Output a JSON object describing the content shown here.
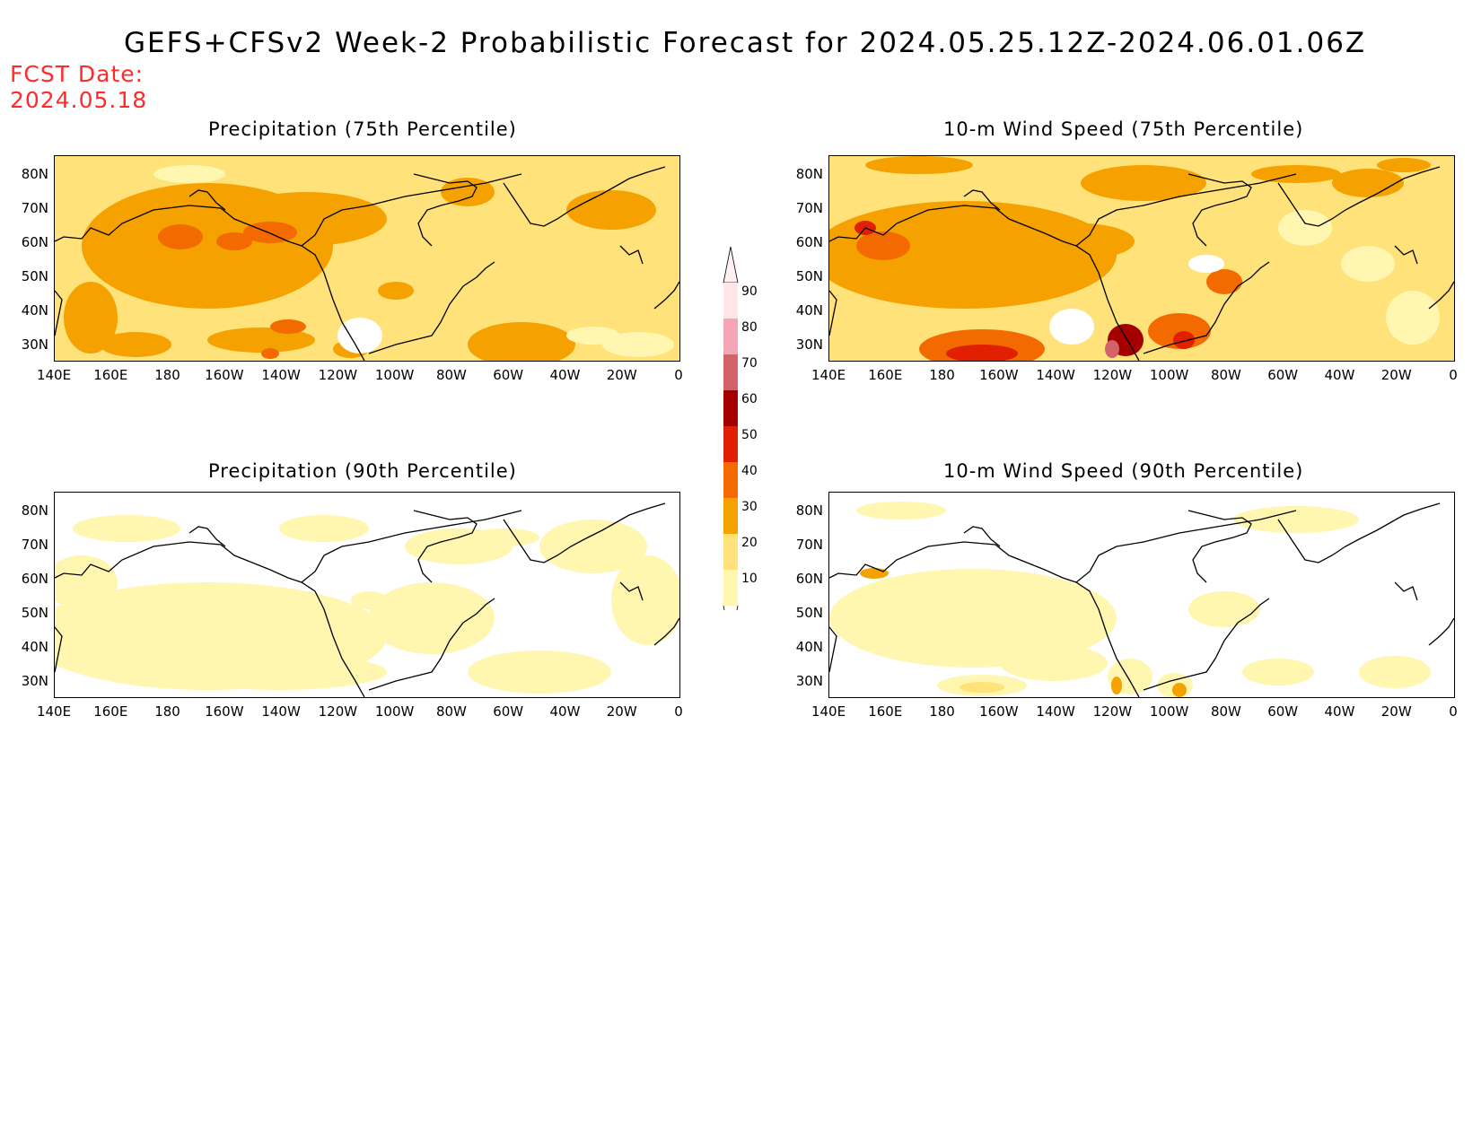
{
  "title": "GEFS+CFSv2 Week-2 Probabilistic Forecast for 2024.05.25.12Z-2024.06.01.06Z",
  "fcst_date_label": "FCST Date:",
  "fcst_date_value": "2024.05.18",
  "colors": {
    "fcst_text": "#ff2a2a",
    "levels": [
      "#ffffff",
      "#fff6b0",
      "#ffe27a",
      "#f5a200",
      "#f26a00",
      "#e02000",
      "#a50000",
      "#d4626a",
      "#f4a6b4",
      "#ffe4e8"
    ]
  },
  "colorbar": {
    "labels": [
      "90",
      "80",
      "70",
      "60",
      "50",
      "40",
      "30",
      "20",
      "10"
    ]
  },
  "panels": [
    {
      "title": "Precipitation (75th Percentile)",
      "field": "precip",
      "percentile": 75
    },
    {
      "title": "10-m Wind Speed (75th Percentile)",
      "field": "wind",
      "percentile": 75
    },
    {
      "title": "Precipitation (90th Percentile)",
      "field": "precip",
      "percentile": 90
    },
    {
      "title": "10-m Wind Speed (90th Percentile)",
      "field": "wind",
      "percentile": 90
    }
  ],
  "axes": {
    "lat_labels": [
      "80N",
      "70N",
      "60N",
      "50N",
      "40N",
      "30N"
    ],
    "lon_labels": [
      "140E",
      "160E",
      "180",
      "160W",
      "140W",
      "120W",
      "100W",
      "80W",
      "60W",
      "40W",
      "20W",
      "0"
    ],
    "lon_range": [
      "140E",
      "0"
    ],
    "lat_range": [
      "25N",
      "85N"
    ]
  }
}
